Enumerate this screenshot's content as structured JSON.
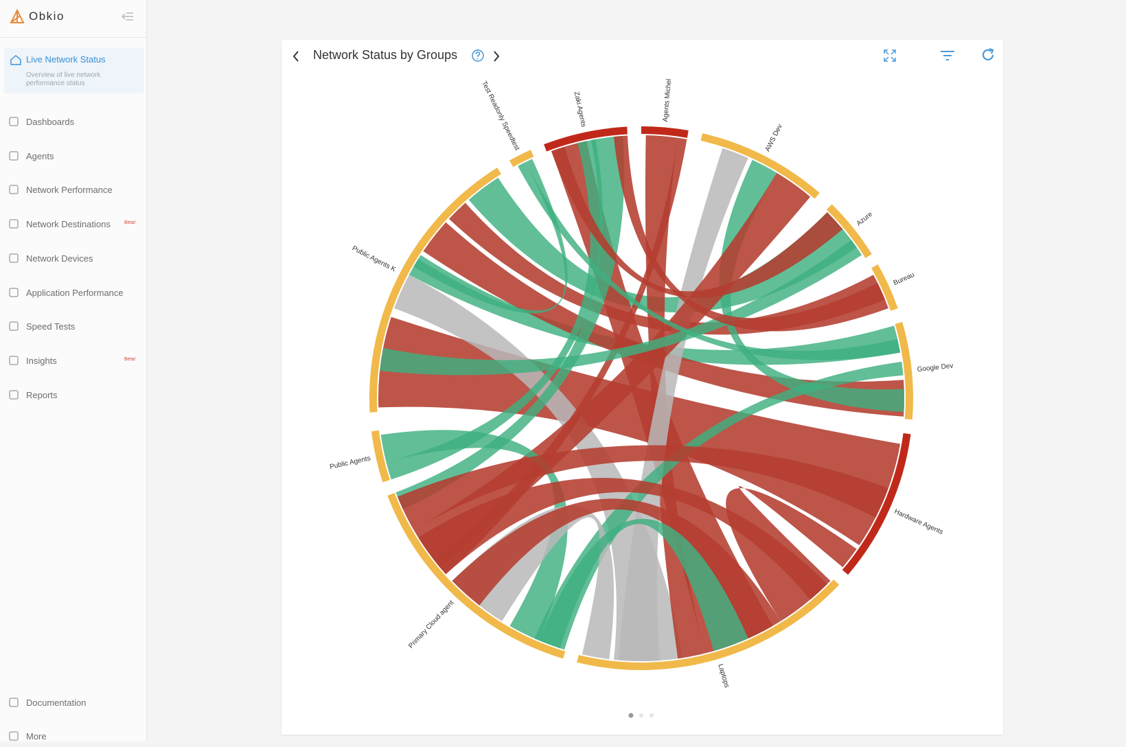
{
  "sidebar": {
    "brand": "Obkio",
    "active": {
      "label": "Live Network Status",
      "description": "Overview of live network performance status"
    },
    "nav": [
      {
        "label": "Dashboards"
      },
      {
        "label": "Agents"
      },
      {
        "label": "Network Performance"
      },
      {
        "label": "Network Destinations",
        "badge": "Beta!"
      },
      {
        "label": "Network Devices"
      },
      {
        "label": "Application Performance"
      },
      {
        "label": "Speed Tests"
      },
      {
        "label": "Insights",
        "badge": "Beta!"
      },
      {
        "label": "Reports"
      }
    ],
    "footer": [
      "Documentation",
      "More"
    ]
  },
  "panel": {
    "title": "Network Status by Groups",
    "groups": [
      {
        "label": "Test Readonly Speedtest",
        "color": "#f0b94a"
      },
      {
        "label": "Zaki Agents",
        "color": "#c0291a"
      },
      {
        "label": "Agents Michel",
        "color": "#c0291a"
      },
      {
        "label": "AWS Dev",
        "color": "#f0b94a"
      },
      {
        "label": "Azure",
        "color": "#f0b94a"
      },
      {
        "label": "Bureau",
        "color": "#f0b94a"
      },
      {
        "label": "Google Dev",
        "color": "#f0b94a"
      },
      {
        "label": "Hardware Agents",
        "color": "#c0291a"
      },
      {
        "label": "Laptops",
        "color": "#f0b94a"
      },
      {
        "label": "Primary Cloud agent",
        "color": "#f0b94a"
      },
      {
        "label": "Public Agents",
        "color": "#f0b94a"
      },
      {
        "label": "Public Agents K",
        "color": "#f0b94a"
      }
    ]
  }
}
